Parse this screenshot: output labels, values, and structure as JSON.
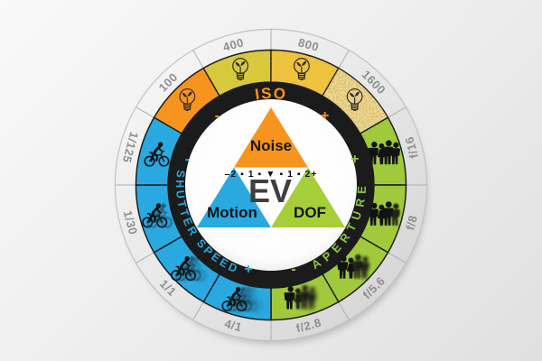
{
  "wheel": {
    "center_labels": {
      "noise": "Noise",
      "motion": "Motion",
      "dof": "DOF",
      "ev": "EV",
      "meter": "–2 ▪ 1 ▪ ▼ ▪ 1 ▪ 2+"
    },
    "colors": {
      "orange": "#F7941E",
      "blue": "#29A9E0",
      "green_triangle": "#A6CE39",
      "green_segment": "#A0C93C",
      "black_ring": "#1B1B1B",
      "outer_label_gray": "#8E8E8E",
      "aperture_text_green": "#8DC63F"
    },
    "sections": [
      {
        "id": "iso",
        "label": "ISO",
        "color": "#F7941E",
        "minus": "-",
        "plus": "+"
      },
      {
        "id": "shutter-speed",
        "label": "SHUTTER SPEED",
        "color": "#29A9E0",
        "minus": "-",
        "plus": "+"
      },
      {
        "id": "aperture",
        "label": "APERTURE",
        "color": "#8DC63F",
        "minus": "-",
        "plus": "+"
      }
    ],
    "segments": [
      {
        "label": "100",
        "start": -60,
        "fill": "#F7941E",
        "icon": "bulb",
        "grain": 0
      },
      {
        "label": "400",
        "start": -30,
        "fill": "#D9CB3C",
        "icon": "bulb",
        "grain": 0.15
      },
      {
        "label": "800",
        "start": 0,
        "fill": "#F2C63E",
        "icon": "bulb",
        "grain": 0.4
      },
      {
        "label": "1600",
        "start": 30,
        "fill": "#F0DC9E",
        "icon": "bulb",
        "grain": 0.9
      },
      {
        "label": "f/16",
        "start": 60,
        "fill": "#A0C93C",
        "icon": "people",
        "sharp": 4
      },
      {
        "label": "f/8",
        "start": 90,
        "fill": "#A0C93C",
        "icon": "people",
        "sharp": 3
      },
      {
        "label": "f/5.6",
        "start": 120,
        "fill": "#A0C93C",
        "icon": "people",
        "sharp": 2
      },
      {
        "label": "f/2.8",
        "start": 150,
        "fill": "#A0C93C",
        "icon": "people",
        "sharp": 1
      },
      {
        "label": "4/1",
        "start": 180,
        "fill": "#29A9E0",
        "icon": "cyclist",
        "ghosts": 3
      },
      {
        "label": "1/1",
        "start": 210,
        "fill": "#29A9E0",
        "icon": "cyclist",
        "ghosts": 2
      },
      {
        "label": "1/30",
        "start": 240,
        "fill": "#29A9E0",
        "icon": "cyclist",
        "ghosts": 1
      },
      {
        "label": "1/125",
        "start": 270,
        "fill": "#29A9E0",
        "icon": "cyclist",
        "ghosts": 0
      }
    ]
  }
}
